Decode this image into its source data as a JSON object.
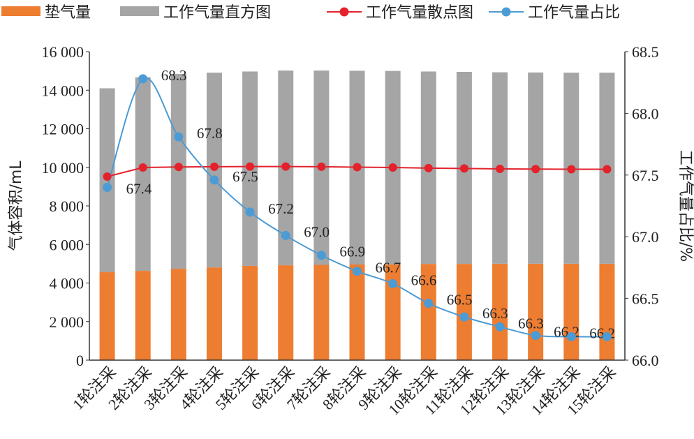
{
  "chart_data": {
    "type": "bar",
    "categories": [
      "1轮注采",
      "2轮注采",
      "3轮注采",
      "4轮注采",
      "5轮注采",
      "6轮注采",
      "7轮注采",
      "8轮注采",
      "9轮注采",
      "10轮注采",
      "11轮注采",
      "12轮注采",
      "13轮注采",
      "14轮注采",
      "15轮注采"
    ],
    "ylabel": "气体容积/mL",
    "y2label": "工作气量占比/%",
    "ylim": [
      0,
      16000
    ],
    "y_ticks": [
      "0",
      "2 000",
      "4 000",
      "6 000",
      "8 000",
      "10 000",
      "12 000",
      "14 000",
      "16 000"
    ],
    "y2lim": [
      66.0,
      68.5
    ],
    "y2_ticks": [
      "66.0",
      "66.5",
      "67.0",
      "67.5",
      "68.0",
      "68.5"
    ],
    "legend_position": "top",
    "series": [
      {
        "name": "垫气量",
        "type": "stacked-bar",
        "axis": "left",
        "color": "#ED7D31",
        "values": [
          4560,
          4630,
          4740,
          4810,
          4890,
          4920,
          4940,
          4960,
          4970,
          4990,
          4990,
          5000,
          5000,
          5000,
          5000
        ]
      },
      {
        "name": "工作气量直方图",
        "type": "stacked-bar",
        "axis": "left",
        "color": "#A5A5A5",
        "values": [
          9540,
          10040,
          10100,
          10100,
          10080,
          10100,
          10080,
          10050,
          10030,
          9980,
          9960,
          9930,
          9920,
          9910,
          9910
        ]
      },
      {
        "name": "工作气量散点图",
        "type": "line",
        "axis": "left",
        "color": "#E3222B",
        "values": [
          9520,
          9990,
          10020,
          10030,
          10040,
          10040,
          10030,
          10010,
          9990,
          9960,
          9940,
          9920,
          9910,
          9900,
          9900
        ]
      },
      {
        "name": "工作气量占比",
        "type": "smooth-line",
        "axis": "right",
        "color": "#4C9BD5",
        "values": [
          67.4,
          68.28,
          67.81,
          67.46,
          67.2,
          67.01,
          66.85,
          66.72,
          66.62,
          66.46,
          66.35,
          66.27,
          66.2,
          66.19,
          66.19
        ],
        "labels": [
          "67.4",
          "68.3",
          "67.8",
          "67.5",
          "67.2",
          "67.0",
          "66.9",
          "66.7",
          "66.6",
          "66.5",
          "66.3",
          "66.3",
          "66.2",
          "66.2",
          null
        ]
      }
    ]
  }
}
